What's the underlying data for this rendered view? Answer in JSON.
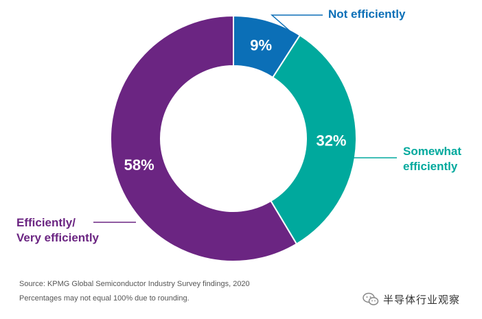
{
  "chart_data": {
    "type": "pie",
    "variant": "donut",
    "title": "",
    "slices": [
      {
        "label_lines": [
          "Not efficiently"
        ],
        "value": 9,
        "value_label": "9%",
        "color": "#0b6fb7"
      },
      {
        "label_lines": [
          "Somewhat",
          "efficiently"
        ],
        "value": 32,
        "value_label": "32%",
        "color": "#00a99d"
      },
      {
        "label_lines": [
          "Efficiently/",
          "Very efficiently"
        ],
        "value": 58,
        "value_label": "58%",
        "color": "#6b2582"
      }
    ],
    "legend": "none",
    "grid": false
  },
  "footer": {
    "source": "Source: KPMG Global Semiconductor Industry Survey findings, 2020",
    "note": "Percentages may not equal 100% due to rounding."
  },
  "watermark": {
    "text": "半导体行业观察",
    "icon": "wechat-chat-bubbles-icon"
  }
}
